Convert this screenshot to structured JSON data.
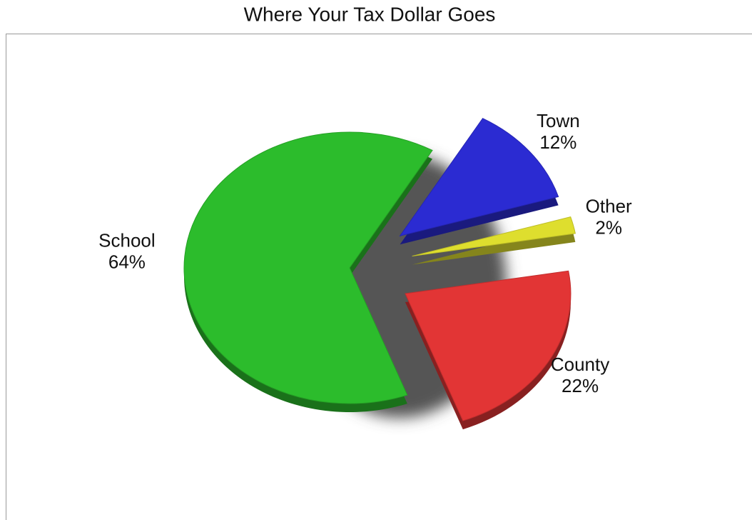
{
  "chart_data": {
    "type": "pie",
    "title": "Where Your Tax Dollar Goes",
    "categories": [
      "School",
      "Town",
      "Other",
      "County"
    ],
    "values": [
      64,
      12,
      2,
      22
    ],
    "value_labels": [
      "64%",
      "12%",
      "2%",
      "22%"
    ],
    "colors": [
      "#2cbc2c",
      "#2b2bd2",
      "#dede2e",
      "#e23535"
    ]
  }
}
